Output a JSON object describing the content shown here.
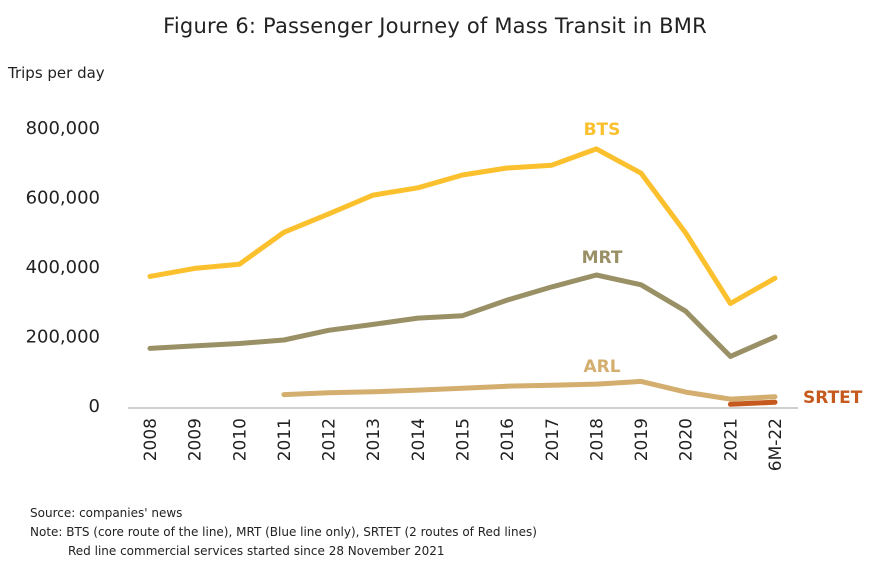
{
  "chart_data": {
    "type": "line",
    "title": "Figure 6: Passenger Journey of Mass Transit in BMR",
    "ylabel": "Trips per day",
    "xlabel": "",
    "categories": [
      "2008",
      "2009",
      "2010",
      "2011",
      "2012",
      "2013",
      "2014",
      "2015",
      "2016",
      "2017",
      "2018",
      "2019",
      "2020",
      "2021",
      "6M-22"
    ],
    "yticks": [
      "800,000",
      "600,000",
      "400,000",
      "200,000",
      "0"
    ],
    "ytick_values": [
      800000,
      600000,
      400000,
      200000,
      0
    ],
    "ylim": [
      0,
      800000
    ],
    "grid": false,
    "legend": "inline labels",
    "series": [
      {
        "name": "BTS",
        "color": "#FBC02D",
        "values": [
          370000,
          393000,
          405000,
          497000,
          550000,
          604000,
          625000,
          662000,
          682000,
          690000,
          737000,
          667000,
          495000,
          292000,
          365000
        ]
      },
      {
        "name": "MRT",
        "color": "#9A9066",
        "values": [
          163000,
          170000,
          177000,
          187000,
          215000,
          232000,
          250000,
          257000,
          302000,
          340000,
          374000,
          346000,
          270000,
          140000,
          196000
        ]
      },
      {
        "name": "ARL",
        "color": "#D4AE6E",
        "values": [
          null,
          null,
          null,
          30000,
          35000,
          38000,
          43000,
          48000,
          54000,
          57000,
          60000,
          68000,
          37000,
          17000,
          24000
        ]
      },
      {
        "name": "SRTET",
        "color": "#C65A1E",
        "values": [
          null,
          null,
          null,
          null,
          null,
          null,
          null,
          null,
          null,
          null,
          null,
          null,
          null,
          2000,
          8000
        ]
      }
    ]
  },
  "footer": {
    "source": "Source: companies' news",
    "note1": "Note: BTS (core route of the line), MRT (Blue line only), SRTET (2 routes of Red lines)",
    "note2": "Red line commercial services started since 28 November 2021"
  }
}
